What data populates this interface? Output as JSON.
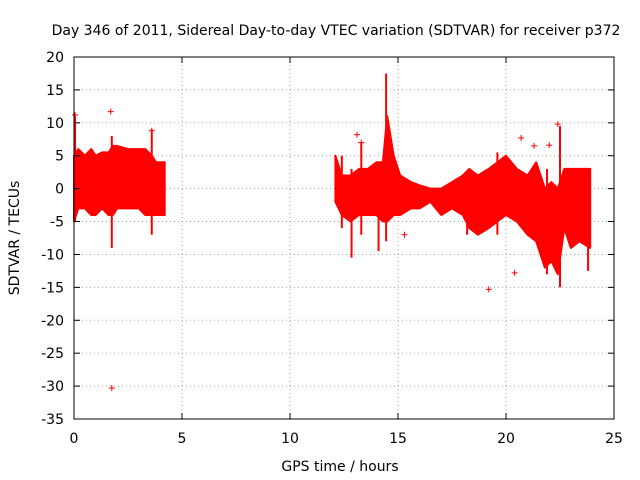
{
  "chart_data": {
    "type": "scatter",
    "title": "Day 346 of 2011, Sidereal Day-to-day VTEC variation (SDTVAR) for receiver p372",
    "xlabel": "GPS time / hours",
    "ylabel": "SDTVAR / TECUs",
    "xlim": [
      0,
      25
    ],
    "ylim": [
      -35,
      20
    ],
    "xticks": [
      0,
      5,
      10,
      15,
      20,
      25
    ],
    "yticks": [
      20,
      15,
      10,
      5,
      0,
      -5,
      -10,
      -15,
      -20,
      -25,
      -30,
      -35
    ],
    "grid": true,
    "marker": "+",
    "color": "#ff0000",
    "series": [
      {
        "name": "SDTVAR",
        "segments": [
          {
            "x_range": [
              0,
              4.2
            ],
            "envelope": [
              [
                0.0,
                -5,
                5
              ],
              [
                0.2,
                -3,
                6
              ],
              [
                0.5,
                -3,
                5
              ],
              [
                0.8,
                -4,
                6
              ],
              [
                1.0,
                -4,
                5
              ],
              [
                1.3,
                -3,
                5.5
              ],
              [
                1.6,
                -4,
                5.5
              ],
              [
                1.8,
                -4,
                6.5
              ],
              [
                2.0,
                -3,
                6.5
              ],
              [
                2.5,
                -3,
                6
              ],
              [
                3.0,
                -3,
                6
              ],
              [
                3.3,
                -4,
                6
              ],
              [
                3.6,
                -4,
                5
              ],
              [
                3.8,
                -4,
                4
              ],
              [
                4.0,
                -4,
                4
              ],
              [
                4.2,
                -4,
                4
              ]
            ]
          },
          {
            "x_range": [
              12.1,
              23.9
            ],
            "envelope": [
              [
                12.1,
                -2,
                5
              ],
              [
                12.4,
                -4,
                2
              ],
              [
                12.8,
                -5,
                2
              ],
              [
                13.2,
                -4,
                3
              ],
              [
                13.6,
                -4,
                3
              ],
              [
                14.0,
                -4,
                4
              ],
              [
                14.3,
                -5,
                4
              ],
              [
                14.5,
                -5,
                11
              ],
              [
                14.8,
                -4,
                5
              ],
              [
                15.1,
                -4,
                2
              ],
              [
                15.6,
                -3,
                1
              ],
              [
                16.0,
                -3,
                0.5
              ],
              [
                16.5,
                -2,
                0
              ],
              [
                17.0,
                -4,
                0
              ],
              [
                17.5,
                -3,
                1
              ],
              [
                18.0,
                -4,
                2
              ],
              [
                18.3,
                -6,
                3
              ],
              [
                18.7,
                -7,
                2
              ],
              [
                19.2,
                -6,
                3
              ],
              [
                19.6,
                -5,
                4
              ],
              [
                20.0,
                -4,
                5
              ],
              [
                20.5,
                -5,
                3
              ],
              [
                21.0,
                -7,
                2
              ],
              [
                21.4,
                -8,
                4
              ],
              [
                21.8,
                -12,
                0
              ],
              [
                22.1,
                -11,
                1
              ],
              [
                22.4,
                -13,
                0
              ],
              [
                22.7,
                -6,
                3
              ],
              [
                23.0,
                -9,
                3
              ],
              [
                23.4,
                -8,
                3
              ],
              [
                23.9,
                -9,
                3
              ]
            ]
          }
        ],
        "spikes": [
          {
            "x": 0.05,
            "y": [
              -5,
              11
            ]
          },
          {
            "x": 1.75,
            "y": [
              -9,
              8
            ]
          },
          {
            "x": 3.6,
            "y": [
              -7,
              9
            ]
          },
          {
            "x": 12.4,
            "y": [
              -6,
              5
            ]
          },
          {
            "x": 12.85,
            "y": [
              -10.5,
              3
            ]
          },
          {
            "x": 13.3,
            "y": [
              -7,
              7
            ]
          },
          {
            "x": 14.1,
            "y": [
              -9.5,
              4
            ]
          },
          {
            "x": 14.45,
            "y": [
              -8,
              17.5
            ]
          },
          {
            "x": 18.2,
            "y": [
              -7,
              2
            ]
          },
          {
            "x": 19.6,
            "y": [
              -7,
              5.5
            ]
          },
          {
            "x": 21.9,
            "y": [
              -13,
              3
            ]
          },
          {
            "x": 22.5,
            "y": [
              -15,
              9.5
            ]
          },
          {
            "x": 23.8,
            "y": [
              -12.5,
              3
            ]
          }
        ],
        "outliers": [
          {
            "x": 0.05,
            "y": 11.2
          },
          {
            "x": 1.7,
            "y": 11.7
          },
          {
            "x": 1.75,
            "y": -30.3
          },
          {
            "x": 3.6,
            "y": 8.8
          },
          {
            "x": 13.1,
            "y": 8.2
          },
          {
            "x": 13.3,
            "y": 7
          },
          {
            "x": 15.3,
            "y": -7
          },
          {
            "x": 19.2,
            "y": -15.3
          },
          {
            "x": 20.4,
            "y": -12.8
          },
          {
            "x": 20.7,
            "y": 7.7
          },
          {
            "x": 21.3,
            "y": 6.5
          },
          {
            "x": 22.0,
            "y": 6.6
          },
          {
            "x": 22.4,
            "y": 9.8
          }
        ]
      }
    ]
  }
}
